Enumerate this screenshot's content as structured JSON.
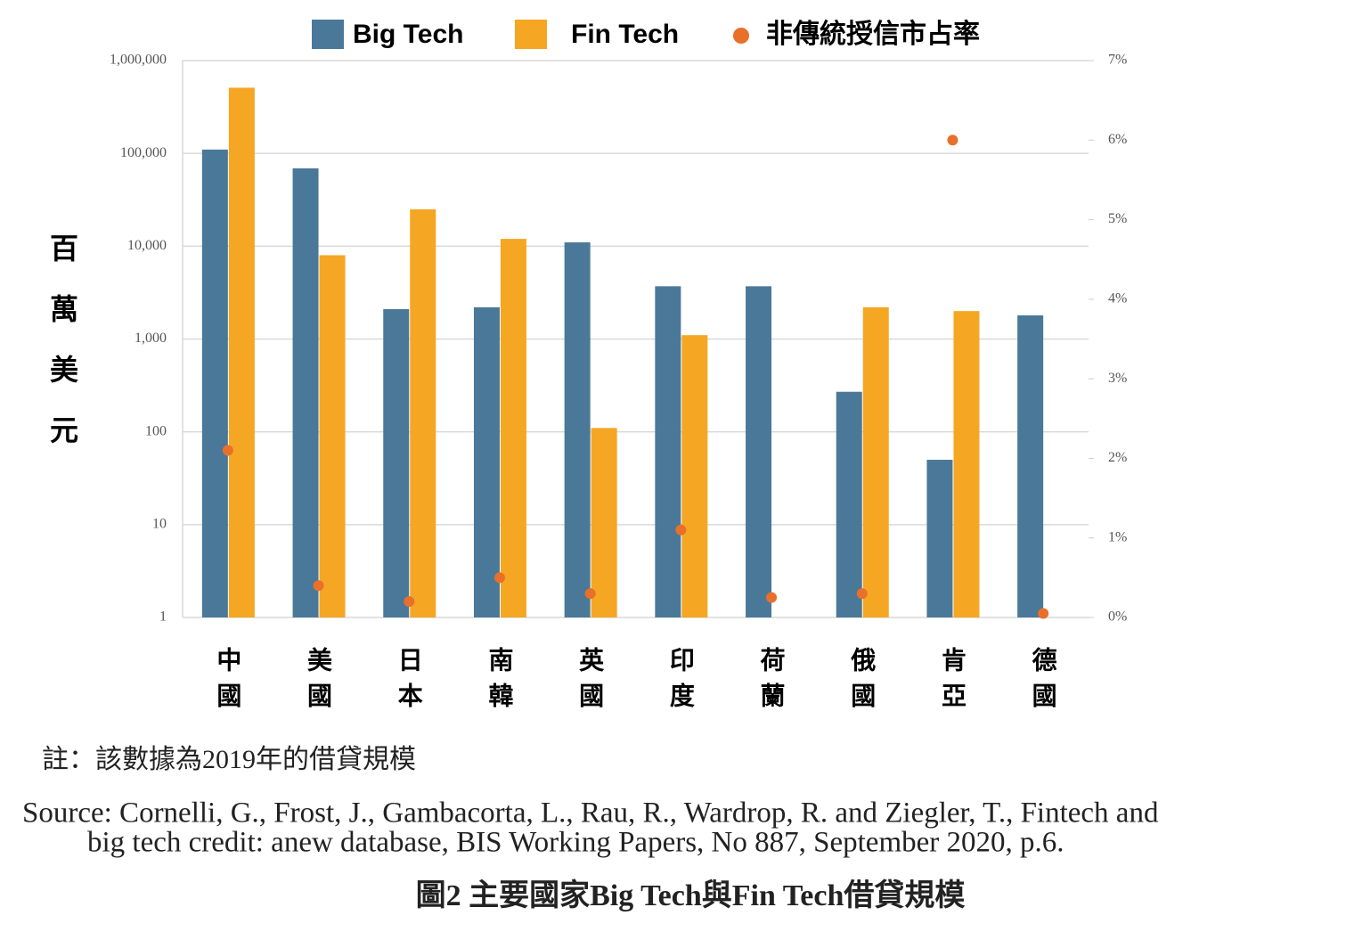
{
  "chart_data": {
    "type": "bar",
    "log_scale_y": true,
    "grid": true,
    "y_label": "百萬美元",
    "categories": [
      "中國",
      "美國",
      "日本",
      "南韓",
      "英國",
      "印度",
      "荷蘭",
      "俄國",
      "肯亞",
      "德國"
    ],
    "series": [
      {
        "name": "Big Tech",
        "color": "#4a7899",
        "values": [
          110000,
          69000,
          2100,
          2200,
          11000,
          3700,
          3700,
          270,
          50,
          1800
        ]
      },
      {
        "name": "Fin Tech",
        "color": "#f5a623",
        "values": [
          510000,
          8000,
          25000,
          12000,
          110,
          1100,
          null,
          2200,
          2000,
          null
        ]
      },
      {
        "name": "非傳統授信市占率",
        "type": "scatter",
        "axis": "y2",
        "color": "#e8702a",
        "values": [
          2.1,
          0.4,
          0.2,
          0.5,
          0.3,
          1.1,
          0.25,
          0.3,
          6.0,
          0.05
        ]
      }
    ],
    "ylim": [
      1,
      1000000
    ],
    "yticks": [
      1,
      10,
      100,
      {
        "value": 1000,
        "label": "1,000"
      },
      {
        "value": 10000,
        "label": "10,000"
      },
      {
        "value": 100000,
        "label": "100,000"
      },
      {
        "value": 1000000,
        "label": "1,000,000"
      }
    ],
    "y2lim": [
      0,
      7
    ],
    "y2ticks": [
      {
        "value": 0,
        "label": "0%"
      },
      {
        "value": 1,
        "label": "1%"
      },
      {
        "value": 2,
        "label": "2%"
      },
      {
        "value": 3,
        "label": "3%"
      },
      {
        "value": 4,
        "label": "4%"
      },
      {
        "value": 5,
        "label": "5%"
      },
      {
        "value": 6,
        "label": "6%"
      },
      {
        "value": 7,
        "label": "7%"
      }
    ]
  },
  "note": "註：該數據為2019年的借貸規模",
  "source": [
    "Source: Cornelli, G., Frost, J., Gambacorta, L., Rau, R., Wardrop, R. and Ziegler, T., Fintech and",
    "big tech credit: anew database, BIS Working Papers, No 887, September 2020, p.6."
  ],
  "caption": "圖2  主要國家Big Tech與Fin Tech借貸規模"
}
